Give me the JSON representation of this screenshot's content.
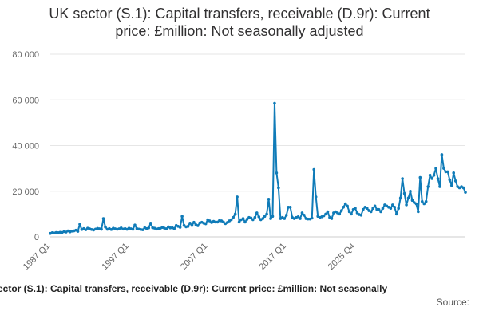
{
  "title_line1": "UK sector (S.1): Capital transfers, receivable (D.9r): Current",
  "title_line2": "price: £million: Not seasonally adjusted",
  "caption_series": "ector (S.1): Capital transfers, receivable (D.9r): Current price: £million: Not seasonally",
  "caption_source": "Source:",
  "colors": {
    "series": "#0f7bb8",
    "grid": "#e6e6e6",
    "axis_text": "#666666"
  },
  "chart_data": {
    "type": "line",
    "x_start": "1987 Q1",
    "x_end": "2025 Q4",
    "xlabel": "",
    "ylabel": "",
    "ylim": [
      0,
      80000
    ],
    "yticks": [
      0,
      20000,
      40000,
      60000,
      80000
    ],
    "ytick_labels": [
      "0",
      "20 000",
      "40 000",
      "60 000",
      "80 000"
    ],
    "xtick_labels": [
      "1987 Q1",
      "1997 Q1",
      "2007 Q1",
      "2017 Q1",
      "2025 Q4"
    ],
    "grid": true,
    "markers": true,
    "series": [
      {
        "values": [
          1500,
          1800,
          1700,
          1900,
          1800,
          2000,
          1900,
          2300,
          2100,
          2600,
          2200,
          2500,
          2600,
          2900,
          2400,
          5500,
          3200,
          3600,
          3100,
          3800,
          3500,
          3200,
          3000,
          3400,
          3700,
          3500,
          3300,
          8000,
          4300,
          3300,
          3600,
          3200,
          3800,
          3500,
          3300,
          3500,
          3900,
          3400,
          3600,
          3300,
          3800,
          3500,
          3300,
          5200,
          3600,
          3400,
          3200,
          3100,
          4000,
          3600,
          3900,
          6000,
          4000,
          3800,
          3400,
          3600,
          3800,
          4100,
          3800,
          3500,
          4400,
          3900,
          4000,
          3600,
          5000,
          4600,
          4200,
          9000,
          5000,
          4400,
          4600,
          6000,
          5000,
          6400,
          5300,
          4900,
          6100,
          6400,
          6000,
          5700,
          7500,
          7000,
          6300,
          6800,
          6500,
          6500,
          7200,
          7000,
          6500,
          5800,
          6300,
          7000,
          7500,
          8500,
          10000,
          17500,
          6500,
          7500,
          8000,
          6500,
          7700,
          8500,
          8300,
          7500,
          8500,
          10500,
          8800,
          7500,
          8000,
          9000,
          10000,
          16500,
          8000,
          9000,
          58500,
          28000,
          21500,
          8000,
          8500,
          8000,
          9500,
          13000,
          13000,
          8500,
          8000,
          8500,
          8800,
          8000,
          10500,
          9500,
          8000,
          7800,
          7800,
          8200,
          29500,
          17500,
          9000,
          8500,
          8800,
          9200,
          10000,
          11000,
          8500,
          8000,
          10500,
          11000,
          10500,
          10000,
          11500,
          13000,
          14500,
          13500,
          11000,
          10000,
          12000,
          12500,
          10500,
          9800,
          9500,
          12000,
          13000,
          12500,
          11500,
          11000,
          12500,
          13500,
          12000,
          12000,
          11000,
          12500,
          14000,
          13500,
          13000,
          12500,
          14000,
          13000,
          10000,
          12500,
          17000,
          25500,
          19000,
          14000,
          17000,
          20000,
          16000,
          15000,
          14500,
          11000,
          26000,
          15500,
          14500,
          15500,
          22000,
          27000,
          25500,
          27000,
          30000,
          25500,
          22000,
          36000,
          30000,
          28500,
          28500,
          25000,
          22500,
          28000,
          24500,
          22000,
          21500,
          22000,
          21500,
          19500
        ]
      }
    ]
  }
}
